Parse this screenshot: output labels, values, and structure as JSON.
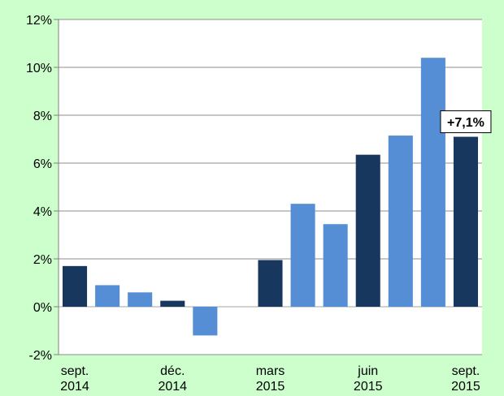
{
  "chart_data": {
    "type": "bar",
    "title": "",
    "xlabel": "",
    "ylabel": "",
    "ylim": [
      -2,
      12
    ],
    "yticks": [
      -2,
      0,
      2,
      4,
      6,
      8,
      10,
      12
    ],
    "ytick_labels": [
      "-2%",
      "0%",
      "2%",
      "4%",
      "6%",
      "8%",
      "10%",
      "12%"
    ],
    "grid": "horizontal",
    "categories": [
      "sept. 2014",
      "oct. 2014",
      "nov. 2014",
      "déc. 2014",
      "janv. 2015",
      "févr. 2015",
      "mars 2015",
      "avr. 2015",
      "mai 2015",
      "juin 2015",
      "juil. 2015",
      "août 2015",
      "sept. 2015"
    ],
    "x_tick_labels": [
      {
        "index": 0,
        "line1": "sept.",
        "line2": "2014"
      },
      {
        "index": 3,
        "line1": "déc.",
        "line2": "2014"
      },
      {
        "index": 6,
        "line1": "mars",
        "line2": "2015"
      },
      {
        "index": 9,
        "line1": "juin",
        "line2": "2015"
      },
      {
        "index": 12,
        "line1": "sept.",
        "line2": "2015"
      }
    ],
    "values": [
      1.7,
      0.9,
      0.6,
      0.25,
      -1.2,
      0.0,
      1.95,
      4.3,
      3.45,
      6.35,
      7.15,
      10.4,
      7.1
    ],
    "bar_colors": [
      "#17375e",
      "#558ed5",
      "#558ed5",
      "#17375e",
      "#558ed5",
      "#558ed5",
      "#17375e",
      "#558ed5",
      "#558ed5",
      "#17375e",
      "#558ed5",
      "#558ed5",
      "#17375e"
    ],
    "annotation": {
      "index": 12,
      "text": "+7,1%"
    }
  }
}
